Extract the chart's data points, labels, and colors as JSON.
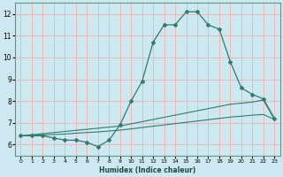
{
  "title": "",
  "xlabel": "Humidex (Indice chaleur)",
  "background_color": "#cde8f0",
  "grid_color": "#f0b0b0",
  "line_color": "#2e7d6e",
  "xlim": [
    -0.5,
    23.5
  ],
  "ylim": [
    5.5,
    12.5
  ],
  "xticks": [
    0,
    1,
    2,
    3,
    4,
    5,
    6,
    7,
    8,
    9,
    10,
    11,
    12,
    13,
    14,
    15,
    16,
    17,
    18,
    19,
    20,
    21,
    22,
    23
  ],
  "yticks": [
    6,
    7,
    8,
    9,
    10,
    11,
    12
  ],
  "line1": [
    6.4,
    6.4,
    6.4,
    6.3,
    6.2,
    6.2,
    6.1,
    5.9,
    6.2,
    6.9,
    8.0,
    8.9,
    10.7,
    11.5,
    11.5,
    12.1,
    12.1,
    11.5,
    11.3,
    9.8,
    8.6,
    8.3,
    8.1,
    7.2
  ],
  "line2": [
    6.4,
    6.45,
    6.5,
    6.55,
    6.6,
    6.65,
    6.7,
    6.75,
    6.8,
    6.85,
    6.95,
    7.05,
    7.15,
    7.25,
    7.35,
    7.45,
    7.55,
    7.65,
    7.75,
    7.85,
    7.9,
    7.95,
    8.05,
    7.15
  ],
  "line3": [
    6.4,
    6.42,
    6.44,
    6.46,
    6.48,
    6.52,
    6.55,
    6.58,
    6.62,
    6.66,
    6.72,
    6.78,
    6.84,
    6.9,
    6.96,
    7.02,
    7.08,
    7.14,
    7.2,
    7.26,
    7.3,
    7.35,
    7.38,
    7.15
  ]
}
